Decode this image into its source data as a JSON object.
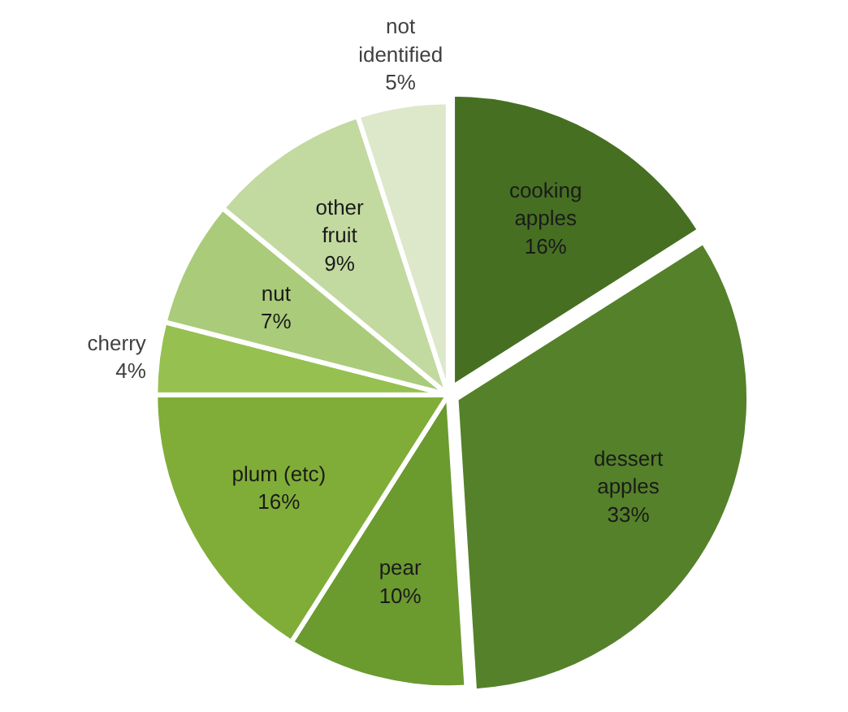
{
  "chart_data": {
    "type": "pie",
    "categories": [
      "cooking apples",
      "dessert apples",
      "pear",
      "plum (etc)",
      "cherry",
      "nut",
      "other fruit",
      "not identified"
    ],
    "values": [
      16,
      33,
      10,
      16,
      4,
      7,
      9,
      5
    ],
    "value_labels": [
      "16%",
      "33%",
      "10%",
      "16%",
      "4%",
      "7%",
      "9%",
      "5%"
    ],
    "colors": [
      "#466f22",
      "#55812a",
      "#6b9a2f",
      "#80ad37",
      "#96c050",
      "#aacb7a",
      "#c2d9a0",
      "#dde8cb"
    ]
  }
}
